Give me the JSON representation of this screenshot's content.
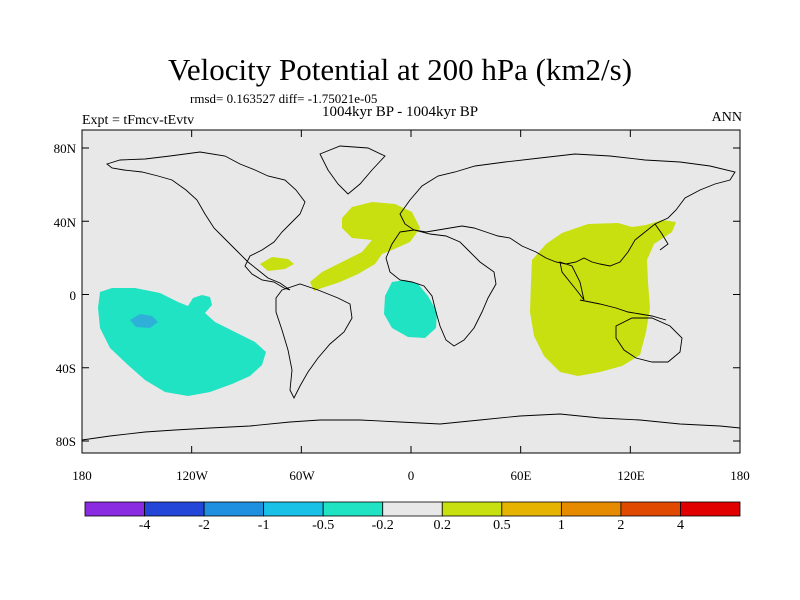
{
  "title": "Velocity Potential at 200 hPa (km2/s)",
  "rmsd_line": "rmsd= 0.163527 diff= -1.75021e-05",
  "left_subtitle": "Expt = tFmcv-tEvtv",
  "center_subtitle": "1004kyr BP - 1004kyr BP",
  "right_subtitle": "ANN",
  "y_ticks": [
    "80N",
    "40N",
    "0",
    "40S",
    "80S"
  ],
  "x_ticks": [
    "180",
    "120W",
    "60W",
    "0",
    "60E",
    "120E",
    "180"
  ],
  "colorbar": {
    "labels": [
      "-4",
      "-2",
      "-1",
      "-0.5",
      "-0.2",
      "0.2",
      "0.5",
      "1",
      "2",
      "4"
    ],
    "colors": [
      "#8a2be2",
      "#2346d8",
      "#1f8fe0",
      "#19c1e6",
      "#1fe3c3",
      "#e8e8e8",
      "#c8df10",
      "#e6b400",
      "#e68a00",
      "#e04a00",
      "#e00000"
    ]
  },
  "region_colors": {
    "negative_fill": "#1fe3c3",
    "negative_core": "#2fb0d8",
    "positive_fill": "#c8df10",
    "ocean_bg": "#e8e8e8"
  }
}
